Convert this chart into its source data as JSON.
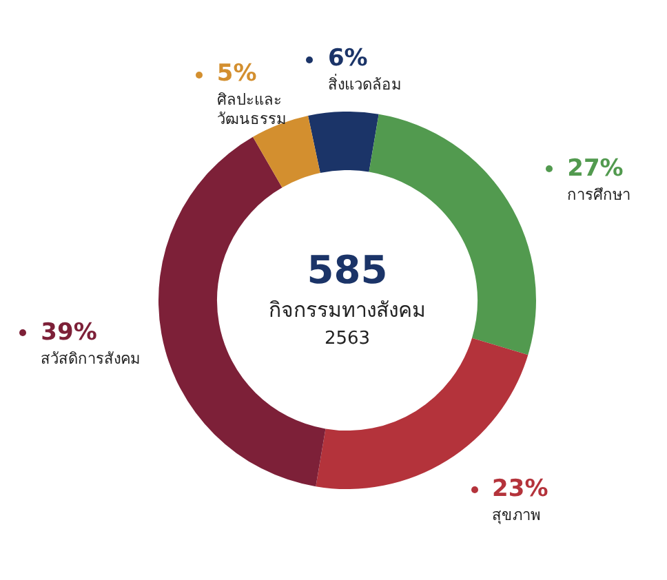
{
  "chart_data": {
    "type": "donut",
    "categories": [
      "สิ่งแวดล้อม",
      "การศึกษา",
      "สุขภาพ",
      "สวัสดิการสังคม",
      "ศิลปะและ\nวัฒนธรรม"
    ],
    "values": [
      6,
      27,
      23,
      39,
      5
    ],
    "value_labels": [
      "6%",
      "27%",
      "23%",
      "39%",
      "5%"
    ],
    "colors": [
      "#1b3468",
      "#529a4f",
      "#b4333b",
      "#7d2038",
      "#d38f2f"
    ],
    "annotations": [
      "585",
      "กิจกรรมทางสังคม",
      "2563"
    ],
    "legend": false
  }
}
